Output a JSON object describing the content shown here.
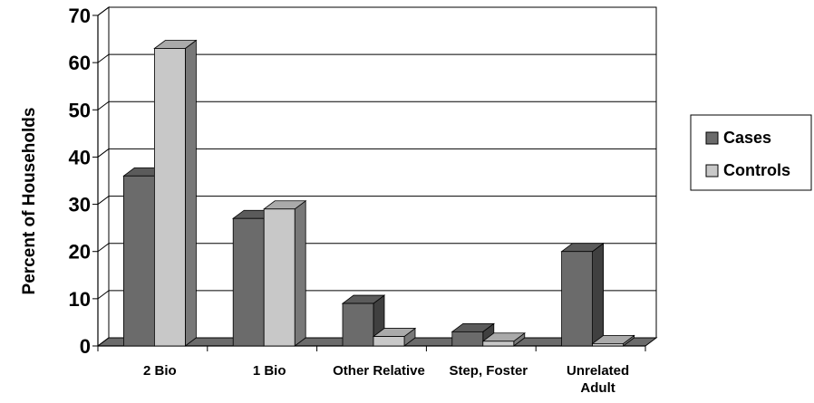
{
  "chart_data": {
    "type": "bar",
    "ylabel": "Percent of Households",
    "xlabel": "",
    "ylim": [
      0,
      70
    ],
    "yticks": [
      "0",
      "10",
      "20",
      "30",
      "40",
      "50",
      "60",
      "70"
    ],
    "categories": [
      "2 Bio",
      "1 Bio",
      "Other Relative",
      "Step, Foster",
      "Unrelated Adult"
    ],
    "series": [
      {
        "name": "Cases",
        "color": "#6b6b6b",
        "values": [
          36,
          27,
          9,
          3,
          20
        ]
      },
      {
        "name": "Controls",
        "color": "#c8c8c8",
        "values": [
          63,
          29,
          2,
          1,
          0.5
        ]
      }
    ],
    "grid": true,
    "legend": "right",
    "style": "3d"
  }
}
